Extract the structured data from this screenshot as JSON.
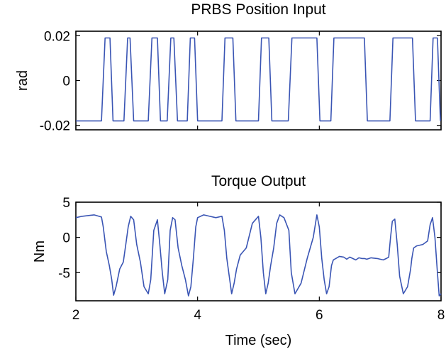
{
  "chart_data": [
    {
      "type": "line",
      "title": "PRBS Position Input",
      "xlabel": "",
      "ylabel": "rad",
      "xlim": [
        2,
        8
      ],
      "ylim": [
        -0.022,
        0.022
      ],
      "xticks": [
        2,
        4,
        6,
        8
      ],
      "yticks": [
        -0.02,
        0,
        0.02
      ],
      "ytick_labels": [
        "-0.02",
        "0",
        "0.02"
      ],
      "show_xtick_labels": false,
      "grid": false,
      "series": [
        {
          "color": "#3a55b4",
          "x": [
            2.0,
            2.42,
            2.48,
            2.56,
            2.61,
            2.79,
            2.85,
            2.89,
            2.95,
            3.19,
            3.25,
            3.34,
            3.39,
            3.5,
            3.56,
            3.61,
            3.67,
            3.83,
            3.88,
            3.95,
            4.0,
            4.4,
            4.45,
            4.58,
            4.63,
            5.0,
            5.05,
            5.17,
            5.22,
            5.49,
            5.55,
            5.96,
            6.01,
            6.19,
            6.24,
            6.74,
            6.79,
            7.16,
            7.21,
            7.53,
            7.58,
            7.82,
            7.87,
            7.94,
            7.99
          ],
          "y": [
            -0.018,
            -0.018,
            0.019,
            0.019,
            -0.018,
            -0.018,
            0.019,
            0.019,
            -0.018,
            -0.018,
            0.019,
            0.019,
            -0.018,
            -0.018,
            0.019,
            0.019,
            -0.018,
            -0.018,
            0.019,
            0.019,
            -0.018,
            -0.018,
            0.019,
            0.019,
            -0.018,
            -0.018,
            0.019,
            0.019,
            -0.018,
            -0.018,
            0.019,
            0.019,
            -0.018,
            -0.018,
            0.019,
            0.019,
            -0.018,
            -0.018,
            0.019,
            0.019,
            -0.018,
            -0.018,
            0.019,
            0.019,
            -0.018
          ]
        }
      ]
    },
    {
      "type": "line",
      "title": "Torque Output",
      "xlabel": "Time (sec)",
      "ylabel": "Nm",
      "xlim": [
        2,
        8
      ],
      "ylim": [
        -9,
        5
      ],
      "xticks": [
        2,
        4,
        6,
        8
      ],
      "xtick_labels": [
        "2",
        "4",
        "6",
        "8"
      ],
      "yticks": [
        -5,
        0,
        5
      ],
      "ytick_labels": [
        "-5",
        "0",
        "5"
      ],
      "grid": false,
      "series": [
        {
          "color": "#3a55b4",
          "x": [
            2.0,
            2.1,
            2.3,
            2.42,
            2.45,
            2.5,
            2.55,
            2.59,
            2.62,
            2.66,
            2.72,
            2.78,
            2.82,
            2.86,
            2.9,
            2.95,
            3.0,
            3.06,
            3.12,
            3.19,
            3.23,
            3.28,
            3.34,
            3.38,
            3.42,
            3.46,
            3.51,
            3.55,
            3.59,
            3.63,
            3.68,
            3.74,
            3.8,
            3.85,
            3.89,
            3.93,
            3.97,
            4.0,
            4.1,
            4.2,
            4.3,
            4.4,
            4.44,
            4.48,
            4.52,
            4.56,
            4.6,
            4.64,
            4.7,
            4.8,
            4.9,
            5.0,
            5.04,
            5.08,
            5.12,
            5.16,
            5.2,
            5.25,
            5.3,
            5.35,
            5.42,
            5.5,
            5.54,
            5.6,
            5.7,
            5.8,
            5.9,
            5.96,
            6.0,
            6.04,
            6.08,
            6.12,
            6.16,
            6.2,
            6.23,
            6.27,
            6.33,
            6.4,
            6.45,
            6.5,
            6.55,
            6.6,
            6.65,
            6.7,
            6.74,
            6.78,
            6.85,
            6.95,
            7.05,
            7.1,
            7.14,
            7.17,
            7.2,
            7.24,
            7.28,
            7.32,
            7.38,
            7.45,
            7.5,
            7.52,
            7.55,
            7.6,
            7.7,
            7.78,
            7.82,
            7.86,
            7.9,
            7.94,
            7.97,
            8.0
          ],
          "y": [
            2.8,
            3.0,
            3.2,
            2.9,
            1.5,
            -2.0,
            -4.0,
            -6.0,
            -8.2,
            -7.0,
            -4.5,
            -3.5,
            -1.0,
            1.5,
            3.0,
            2.5,
            -1.0,
            -3.5,
            -7.0,
            -8.0,
            -6.0,
            1.0,
            2.5,
            -1.0,
            -5.0,
            -8.0,
            -6.0,
            1.0,
            2.8,
            2.5,
            -1.5,
            -4.0,
            -6.0,
            -8.3,
            -7.0,
            -3.0,
            1.5,
            2.8,
            3.2,
            3.0,
            2.8,
            3.0,
            1.0,
            -3.0,
            -5.5,
            -8.0,
            -6.5,
            -4.5,
            -2.5,
            -1.5,
            2.0,
            3.0,
            0.0,
            -5.0,
            -8.0,
            -6.5,
            -4.0,
            -1.5,
            2.0,
            3.2,
            2.8,
            1.0,
            -5.0,
            -8.0,
            -6.5,
            -3.0,
            0.0,
            3.2,
            1.5,
            -3.0,
            -6.0,
            -8.0,
            -7.0,
            -4.0,
            -3.2,
            -3.0,
            -2.7,
            -2.8,
            -3.1,
            -2.8,
            -3.0,
            -3.2,
            -2.9,
            -3.0,
            -3.0,
            -3.1,
            -2.9,
            -3.0,
            -3.2,
            -3.0,
            -2.8,
            0.0,
            2.3,
            2.6,
            -1.0,
            -5.5,
            -8.0,
            -7.0,
            -4.5,
            -3.0,
            -1.5,
            -1.2,
            -1.0,
            -0.5,
            1.8,
            2.8,
            0.0,
            -5.0,
            -8.3,
            -8.0
          ]
        }
      ]
    }
  ]
}
